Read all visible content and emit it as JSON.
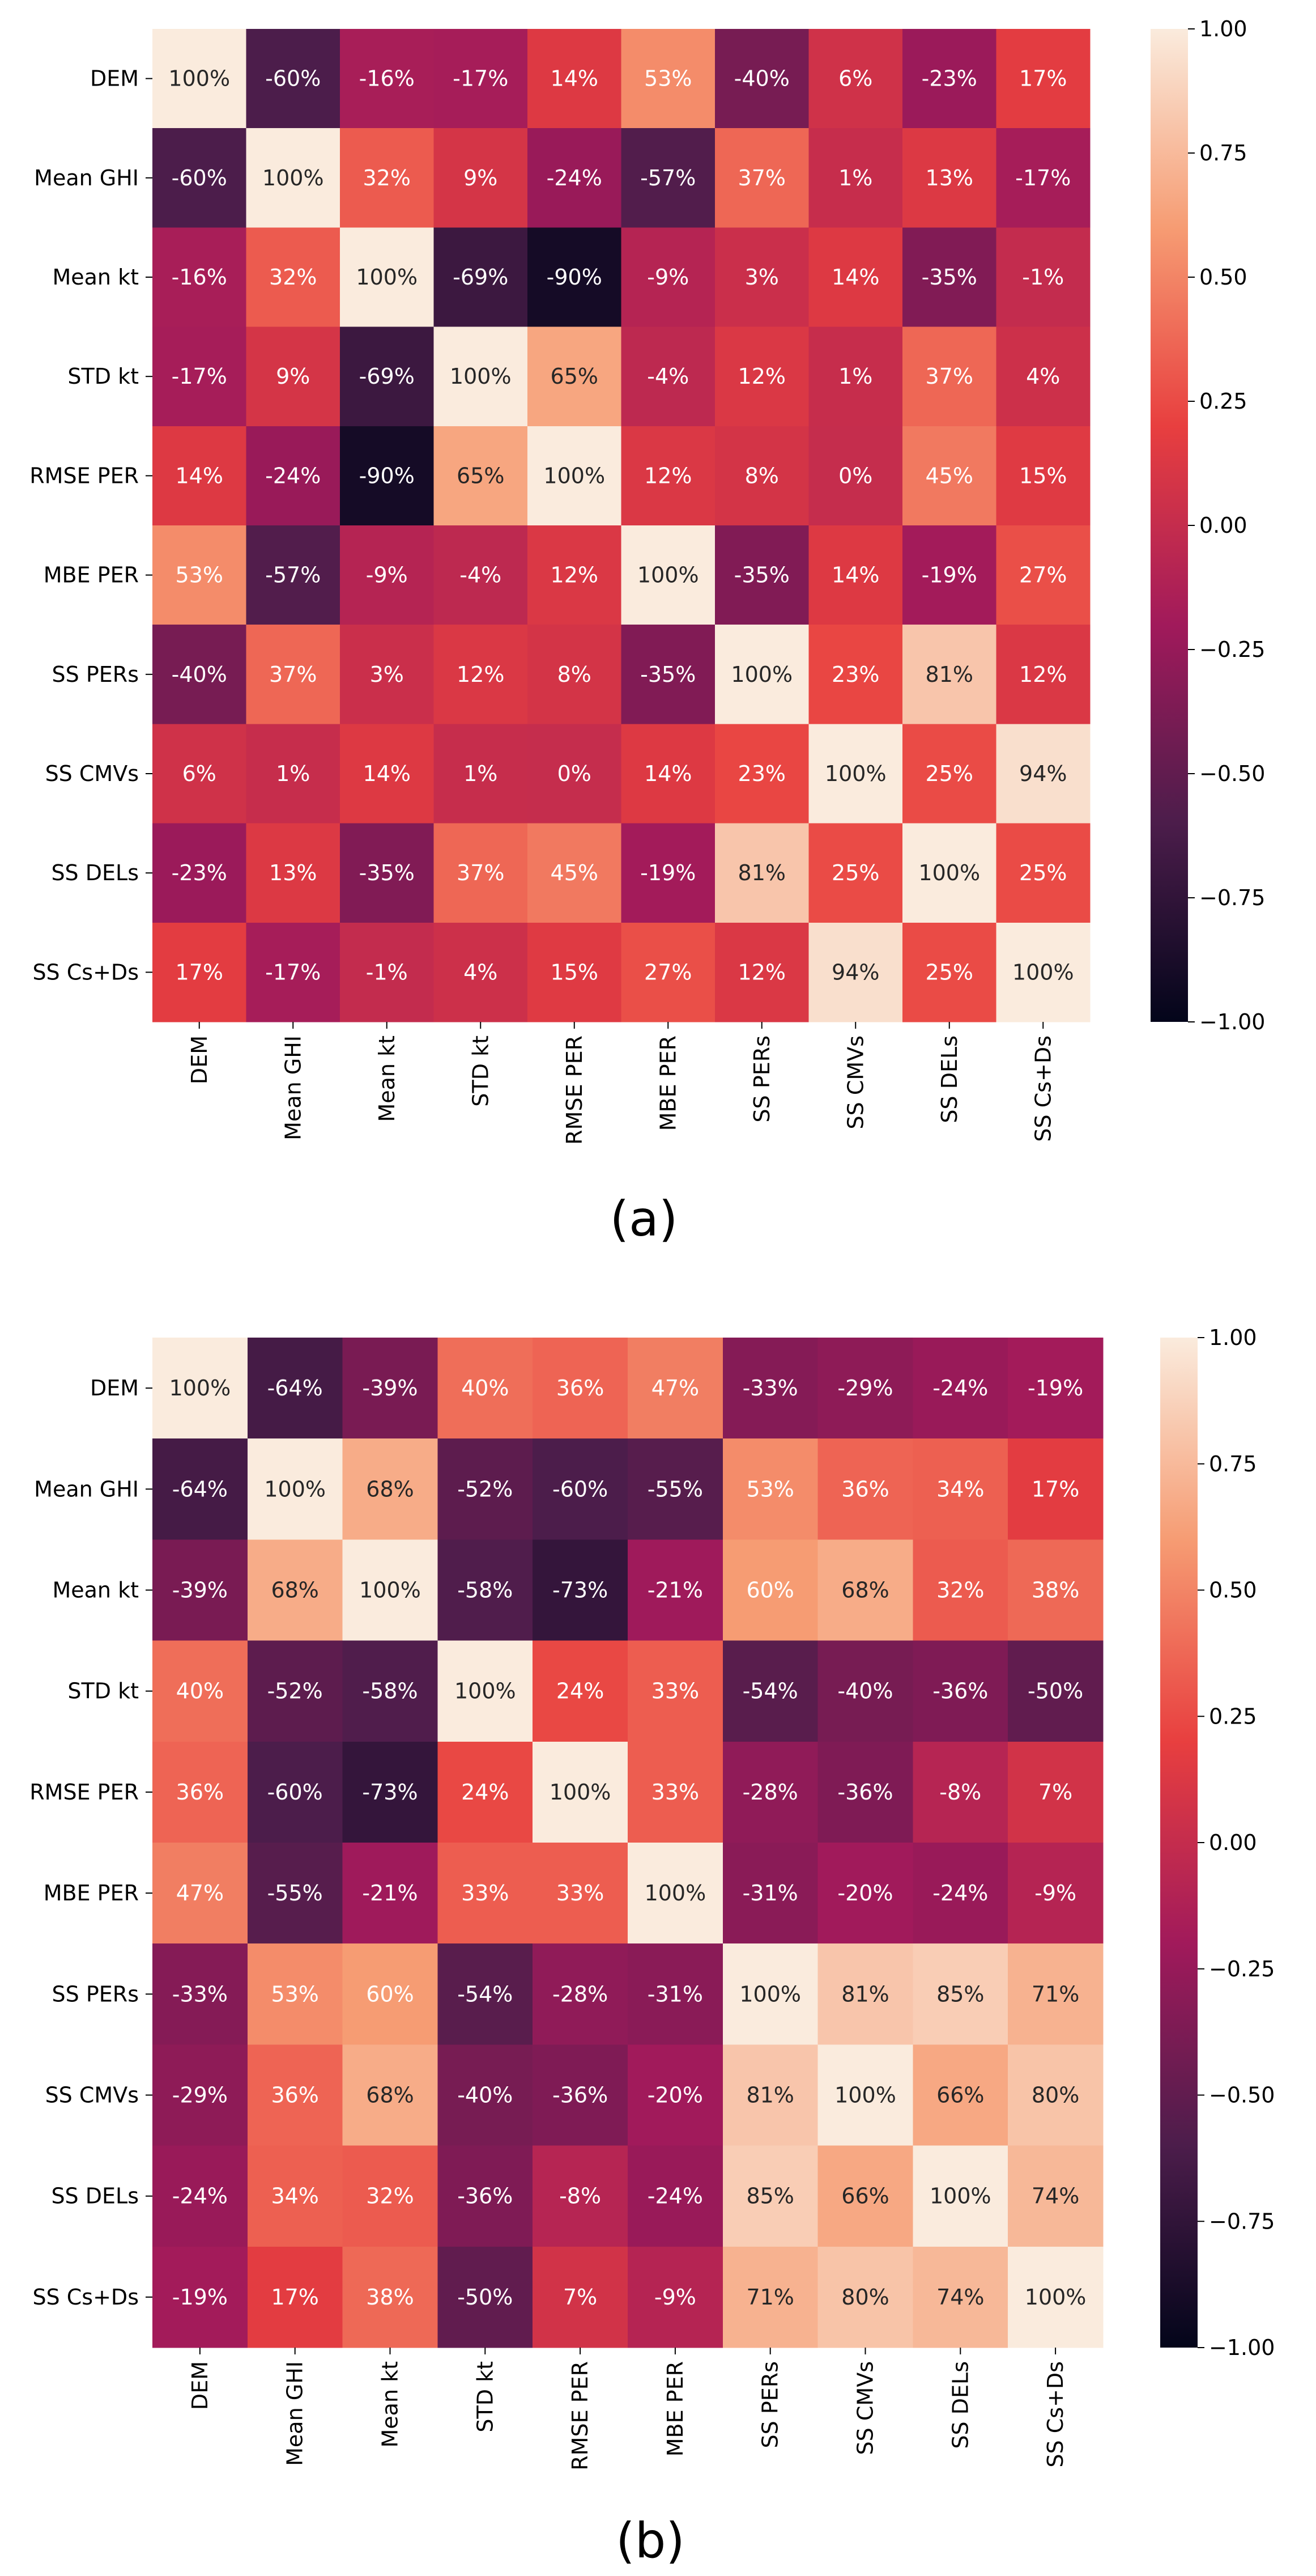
{
  "chart_data": [
    {
      "type": "heatmap",
      "panel_label": "(a)",
      "labels": [
        "DEM",
        "Mean GHI",
        "Mean kt",
        "STD kt",
        "RMSE PER",
        "MBE PER",
        "SS PERs",
        "SS CMVs",
        "SS DELs",
        "SS Cs+Ds"
      ],
      "values": [
        [
          100,
          -60,
          -16,
          -17,
          14,
          53,
          -40,
          6,
          -23,
          17
        ],
        [
          -60,
          100,
          32,
          9,
          -24,
          -57,
          37,
          1,
          13,
          -17
        ],
        [
          -16,
          32,
          100,
          -69,
          -90,
          -9,
          3,
          14,
          -35,
          -1
        ],
        [
          -17,
          9,
          -69,
          100,
          65,
          -4,
          12,
          1,
          37,
          4
        ],
        [
          14,
          -24,
          -90,
          65,
          100,
          12,
          8,
          0,
          45,
          15
        ],
        [
          53,
          -57,
          -9,
          -4,
          12,
          100,
          -35,
          14,
          -19,
          27
        ],
        [
          -40,
          37,
          3,
          12,
          8,
          -35,
          100,
          23,
          81,
          12
        ],
        [
          6,
          1,
          14,
          1,
          0,
          14,
          23,
          100,
          25,
          94
        ],
        [
          -23,
          13,
          -35,
          37,
          45,
          -19,
          81,
          25,
          100,
          25
        ],
        [
          17,
          -17,
          -1,
          4,
          15,
          27,
          12,
          94,
          25,
          100
        ]
      ],
      "value_format": "percent",
      "colorbar": {
        "min": -1.0,
        "max": 1.0,
        "ticks": [
          "1.00",
          "0.75",
          "0.50",
          "0.25",
          "0.00",
          "−0.25",
          "−0.50",
          "−0.75",
          "−1.00"
        ]
      }
    },
    {
      "type": "heatmap",
      "panel_label": "(b)",
      "labels": [
        "DEM",
        "Mean GHI",
        "Mean kt",
        "STD kt",
        "RMSE PER",
        "MBE PER",
        "SS PERs",
        "SS CMVs",
        "SS DELs",
        "SS Cs+Ds"
      ],
      "values": [
        [
          100,
          -64,
          -39,
          40,
          36,
          47,
          -33,
          -29,
          -24,
          -19
        ],
        [
          -64,
          100,
          68,
          -52,
          -60,
          -55,
          53,
          36,
          34,
          17
        ],
        [
          -39,
          68,
          100,
          -58,
          -73,
          -21,
          60,
          68,
          32,
          38
        ],
        [
          40,
          -52,
          -58,
          100,
          24,
          33,
          -54,
          -40,
          -36,
          -50
        ],
        [
          36,
          -60,
          -73,
          24,
          100,
          33,
          -28,
          -36,
          -8,
          7
        ],
        [
          47,
          -55,
          -21,
          33,
          33,
          100,
          -31,
          -20,
          -24,
          -9
        ],
        [
          -33,
          53,
          60,
          -54,
          -28,
          -31,
          100,
          81,
          85,
          71
        ],
        [
          -29,
          36,
          68,
          -40,
          -36,
          -20,
          81,
          100,
          66,
          80
        ],
        [
          -24,
          34,
          32,
          -36,
          -8,
          -24,
          85,
          66,
          100,
          74
        ],
        [
          -19,
          17,
          38,
          -50,
          7,
          -9,
          71,
          80,
          74,
          100
        ]
      ],
      "value_format": "percent",
      "colorbar": {
        "min": -1.0,
        "max": 1.0,
        "ticks": [
          "1.00",
          "0.75",
          "0.50",
          "0.25",
          "0.00",
          "−0.25",
          "−0.50",
          "−0.75",
          "−1.00"
        ]
      }
    }
  ],
  "colors": {
    "colormap": [
      "#03051a",
      "#4c1d4b",
      "#a11a5b",
      "#e83f3f",
      "#f69c73",
      "#faebdd"
    ],
    "text_light": "#ffffff",
    "text_dark": "#262626",
    "axis": "#000000"
  }
}
